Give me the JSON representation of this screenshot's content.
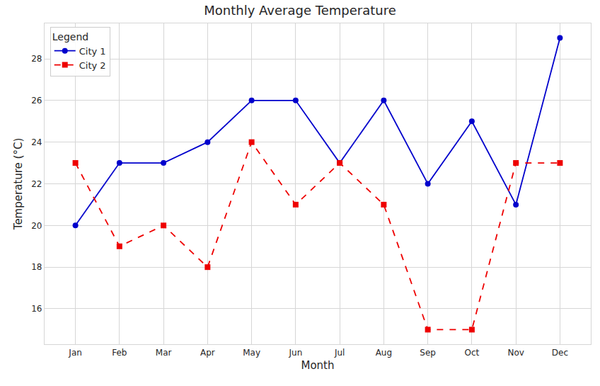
{
  "chart_data": {
    "type": "line",
    "title": "Monthly Average Temperature",
    "x_label": "Month",
    "y_label": "Temperature (°C)",
    "categories": [
      "Jan",
      "Feb",
      "Mar",
      "Apr",
      "May",
      "Jun",
      "Jul",
      "Aug",
      "Sep",
      "Oct",
      "Nov",
      "Dec"
    ],
    "series": [
      {
        "name": "City 1",
        "color": "#0000cc",
        "marker": "circle",
        "line_style": "solid",
        "values": [
          20,
          23,
          23,
          24,
          26,
          26,
          23,
          26,
          22,
          25,
          21,
          29
        ]
      },
      {
        "name": "City 2",
        "color": "#ee0000",
        "marker": "square",
        "line_style": "dashed",
        "values": [
          23,
          19,
          20,
          18,
          24,
          21,
          23,
          21,
          15,
          15,
          23,
          23
        ]
      }
    ],
    "ylim": [
      14.3,
      29.7
    ],
    "yticks": [
      16,
      18,
      20,
      22,
      24,
      26,
      28
    ],
    "grid": true,
    "legend": "upper left",
    "legend_title": "Legend"
  }
}
